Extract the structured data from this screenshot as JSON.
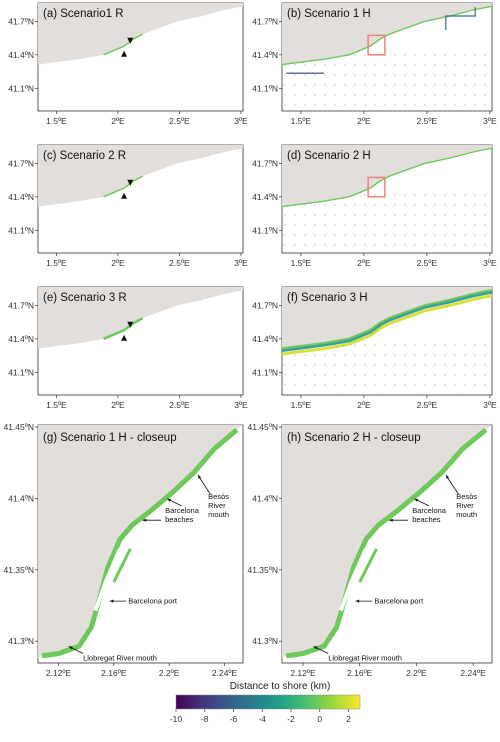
{
  "chart_data": [
    {
      "id": "a",
      "type": "scatter",
      "title": "(a) Scenario1 R",
      "x_ticks": [
        "1.5ºE",
        "2ºE",
        "2.5ºE",
        "3ºE"
      ],
      "y_ticks": [
        "41.7ºN",
        "41.4ºN",
        "41.1ºN"
      ],
      "xlim": [
        1.35,
        3.0
      ],
      "ylim": [
        40.95,
        41.85
      ],
      "grid": false,
      "markers": "release points (triangles)"
    },
    {
      "id": "b",
      "type": "scatter",
      "title": "(b) Scenario 1 H",
      "x_ticks": [
        "1.5ºE",
        "2ºE",
        "2.5ºE",
        "3ºE"
      ],
      "y_ticks": [
        "41.7ºN",
        "41.4ºN",
        "41.1ºN"
      ],
      "xlim": [
        1.35,
        3.0
      ],
      "ylim": [
        40.95,
        41.85
      ],
      "grid": "grid of dots",
      "highlight": "red box around Barcelona"
    },
    {
      "id": "c",
      "type": "scatter",
      "title": "(c) Scenario 2 R",
      "x_ticks": [
        "1.5ºE",
        "2ºE",
        "2.5ºE",
        "3ºE"
      ],
      "y_ticks": [
        "41.7ºN",
        "41.4ºN",
        "41.1ºN"
      ],
      "xlim": [
        1.35,
        3.0
      ],
      "ylim": [
        40.95,
        41.85
      ]
    },
    {
      "id": "d",
      "type": "scatter",
      "title": "(d) Scenario 2 H",
      "x_ticks": [
        "1.5ºE",
        "2ºE",
        "2.5ºE",
        "3ºE"
      ],
      "y_ticks": [
        "41.7ºN",
        "41.4ºN",
        "41.1ºN"
      ],
      "xlim": [
        1.35,
        3.0
      ],
      "ylim": [
        40.95,
        41.85
      ],
      "highlight": "red box around Barcelona"
    },
    {
      "id": "e",
      "type": "scatter",
      "title": "(e) Scenario 3 R",
      "x_ticks": [
        "1.5ºE",
        "2ºE",
        "2.5ºE",
        "3ºE"
      ],
      "y_ticks": [
        "41.7ºN",
        "41.4ºN",
        "41.1ºN"
      ],
      "xlim": [
        1.35,
        3.0
      ],
      "ylim": [
        40.95,
        41.85
      ]
    },
    {
      "id": "f",
      "type": "scatter",
      "title": "(f) Scenario 3 H",
      "x_ticks": [
        "1.5ºE",
        "2ºE",
        "2.5ºE",
        "3ºE"
      ],
      "y_ticks": [
        "41.7ºN",
        "41.4ºN",
        "41.1ºN"
      ],
      "xlim": [
        1.35,
        3.0
      ],
      "ylim": [
        40.95,
        41.85
      ]
    },
    {
      "id": "g",
      "type": "scatter",
      "title": "(g) Scenario 1 H - closeup",
      "x_ticks": [
        "2.12ºE",
        "2.16ºE",
        "2.2ºE",
        "2.24ºE"
      ],
      "y_ticks": [
        "41.45ºN",
        "41.4ºN",
        "41.35ºN",
        "41.3ºN"
      ],
      "annotations": [
        "Besòs River mouth",
        "Barcelona beaches",
        "Barcelona port",
        "Llobregat River mouth"
      ]
    },
    {
      "id": "h",
      "type": "scatter",
      "title": "(h) Scenario 2 H - closeup",
      "x_ticks": [
        "2.12ºE",
        "2.16ºE",
        "2.2ºE",
        "2.24ºE"
      ],
      "y_ticks": [
        "41.45ºN",
        "41.4ºN",
        "41.35ºN",
        "41.3ºN"
      ],
      "annotations": [
        "Besòs River mouth",
        "Barcelona beaches",
        "Barcelona port",
        "Llobregat River mouth"
      ]
    }
  ],
  "labels": {
    "besos": [
      "Besòs",
      "River",
      "mouth"
    ],
    "beaches": [
      "Barcelona",
      "beaches"
    ],
    "port": "Barcelona port",
    "llobregat": "Llobregat River mouth"
  },
  "colorbar": {
    "title": "Distance to shore (km)",
    "ticks": [
      "-10",
      "-8",
      "-6",
      "-4",
      "-2",
      "0",
      "2"
    ],
    "range": [
      -10,
      2.8
    ],
    "colormap": "viridis",
    "stops": [
      "#440154",
      "#46327e",
      "#365c8d",
      "#277f8e",
      "#1fa187",
      "#4ac16d",
      "#a0da39",
      "#fde725"
    ]
  },
  "colors": {
    "land": "#e2dedb",
    "line_green": "#6cc95a",
    "highlight_box": "#f08080"
  }
}
